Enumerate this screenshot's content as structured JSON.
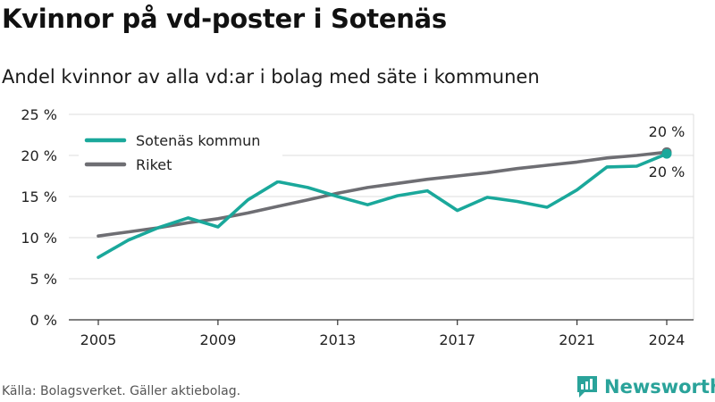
{
  "title": "Kvinnor på vd-poster i Sotenäs",
  "subtitle": "Andel kvinnor av alla vd:ar i bolag med säte i kommunen",
  "source": "Källa: Bolagsverket. Gäller aktiebolag.",
  "brand": "Newsworthy",
  "colors": {
    "sotenas": "#1aa89b",
    "riket": "#6e6e73",
    "grid": "#dcdcdc",
    "brand": "#2aa39a"
  },
  "chart_data": {
    "type": "line",
    "x": [
      2005,
      2006,
      2007,
      2008,
      2009,
      2010,
      2011,
      2012,
      2013,
      2014,
      2015,
      2016,
      2017,
      2018,
      2019,
      2020,
      2021,
      2022,
      2023,
      2024
    ],
    "series": [
      {
        "name": "Sotenäs kommun",
        "values": [
          7.6,
          9.7,
          11.2,
          12.4,
          11.3,
          14.6,
          16.8,
          16.1,
          15.0,
          14.0,
          15.1,
          15.7,
          13.3,
          14.9,
          14.4,
          13.7,
          15.8,
          18.6,
          18.7,
          20.2
        ]
      },
      {
        "name": "Riket",
        "values": [
          10.2,
          10.7,
          11.2,
          11.8,
          12.3,
          13.0,
          13.8,
          14.6,
          15.4,
          16.1,
          16.6,
          17.1,
          17.5,
          17.9,
          18.4,
          18.8,
          19.2,
          19.7,
          20.0,
          20.4
        ]
      }
    ],
    "yticks": [
      "0 %",
      "5 %",
      "10 %",
      "15 %",
      "20 %",
      "25 %"
    ],
    "ytick_values": [
      0,
      5,
      10,
      15,
      20,
      25
    ],
    "xticks": [
      "2005",
      "2009",
      "2013",
      "2017",
      "2021",
      "2024"
    ],
    "xtick_values": [
      2005,
      2009,
      2013,
      2017,
      2021,
      2024
    ],
    "ylim": [
      0,
      25
    ],
    "xlim": [
      2005,
      2024
    ],
    "end_labels": {
      "riket": "20 %",
      "sotenas": "20 %"
    },
    "legend_position": "top-left",
    "grid": true
  }
}
